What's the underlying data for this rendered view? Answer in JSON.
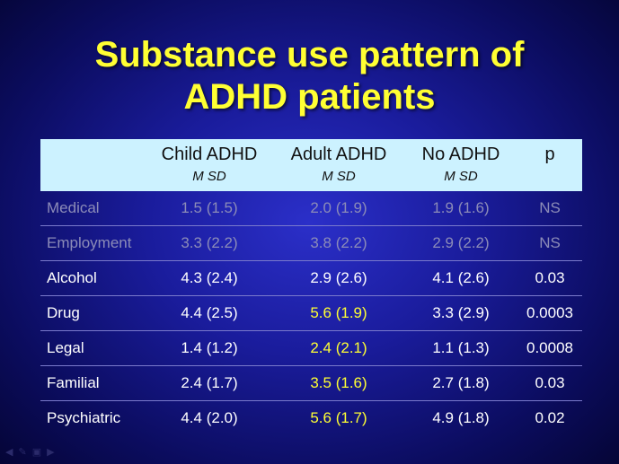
{
  "slide": {
    "title_line1": "Substance use pattern of",
    "title_line2": "ADHD patients"
  },
  "table": {
    "headers": [
      {
        "label": "",
        "sub": ""
      },
      {
        "label": "Child ADHD",
        "sub": "M  SD"
      },
      {
        "label": "Adult ADHD",
        "sub": "M  SD"
      },
      {
        "label": "No ADHD",
        "sub": "M  SD"
      },
      {
        "label": "p",
        "sub": ""
      }
    ],
    "rows": [
      {
        "cells": [
          "Medical",
          "1.5 (1.5)",
          "2.0 (1.9)",
          "1.9 (1.6)",
          "NS"
        ]
      },
      {
        "cells": [
          "Employment",
          "3.3 (2.2)",
          "3.8 (2.2)",
          "2.9 (2.2)",
          "NS"
        ]
      },
      {
        "cells": [
          "Alcohol",
          "4.3 (2.4)",
          "2.9 (2.6)",
          "4.1 (2.6)",
          "0.03"
        ]
      },
      {
        "cells": [
          "Drug",
          "4.4 (2.5)",
          "5.6 (1.9)",
          "3.3 (2.9)",
          "0.0003"
        ]
      },
      {
        "cells": [
          "Legal",
          "1.4 (1.2)",
          "2.4 (2.1)",
          "1.1 (1.3)",
          "0.0008"
        ]
      },
      {
        "cells": [
          "Familial",
          "2.4 (1.7)",
          "3.5 (1.6)",
          "2.7 (1.8)",
          "0.03"
        ]
      },
      {
        "cells": [
          "Psychiatric",
          "4.4 (2.0)",
          "5.6 (1.7)",
          "4.9 (1.8)",
          "0.02"
        ]
      }
    ]
  },
  "colors": {
    "title": "#ffff33",
    "header_bg": "#ccf2ff",
    "highlight": "#ffff33",
    "dimmed_text": "#8c8cb8",
    "background": "#1a1c9c"
  }
}
